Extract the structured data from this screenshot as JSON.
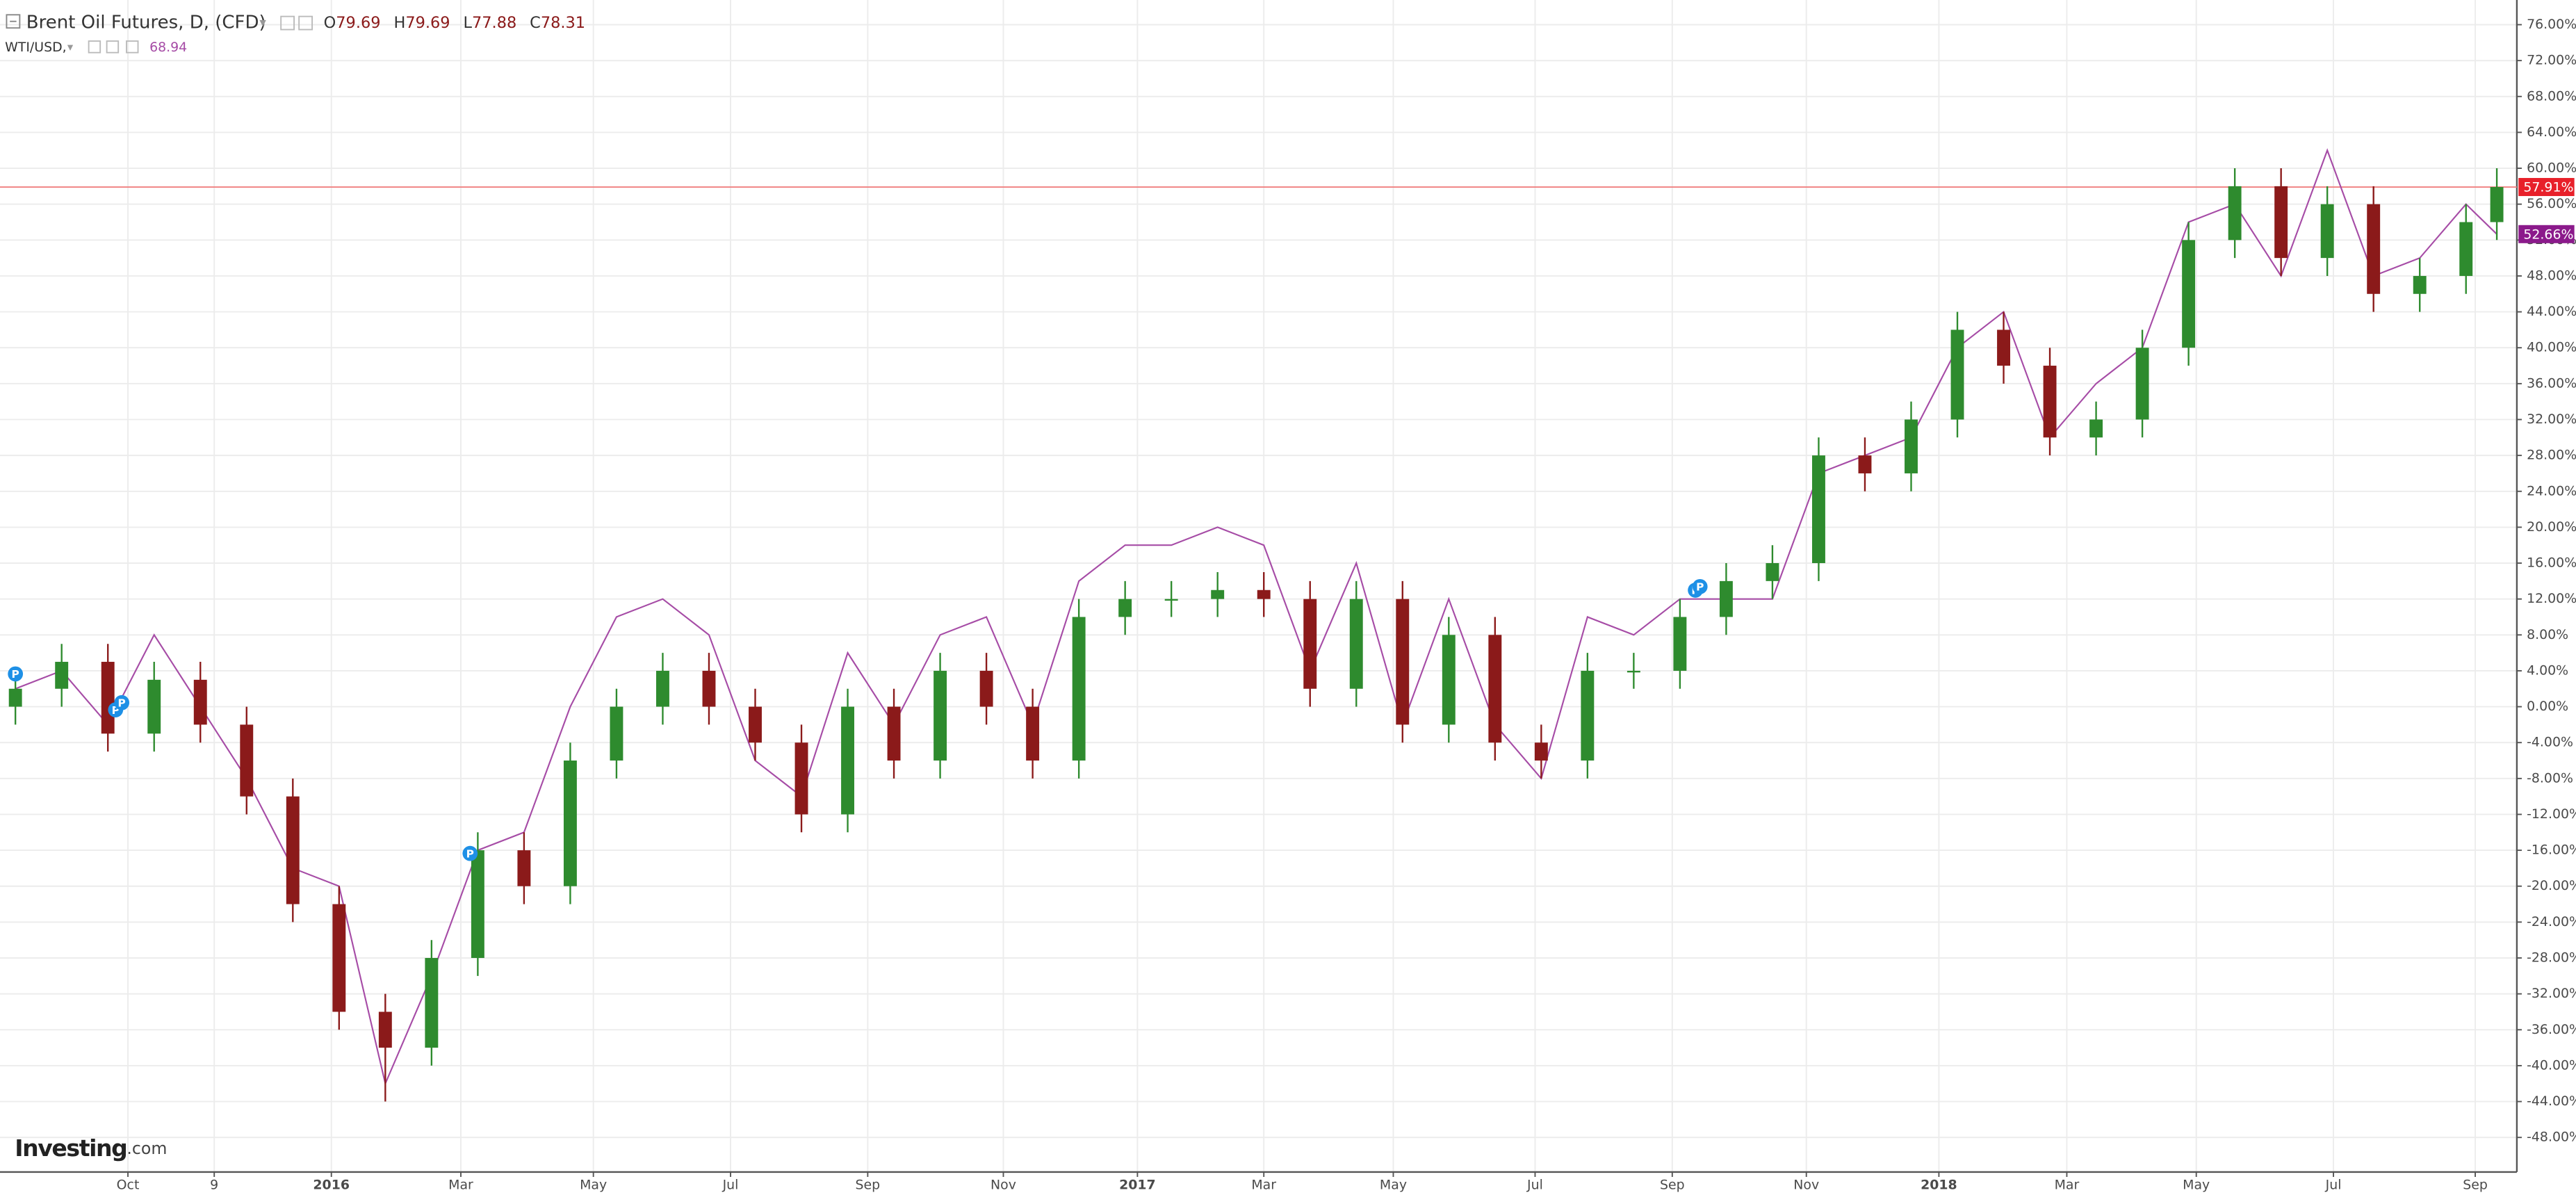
{
  "chart_data": {
    "type": "candlestick",
    "x": [
      1,
      4,
      7,
      10,
      13,
      16,
      19,
      22,
      25,
      28,
      31,
      34,
      37,
      40,
      43,
      46,
      49,
      52,
      55,
      58,
      61,
      64,
      67,
      70,
      73,
      76,
      79,
      82,
      85,
      88,
      91,
      94,
      97,
      100,
      103,
      106,
      109,
      112,
      115,
      118,
      121,
      124,
      127,
      130,
      133,
      136,
      139,
      142,
      145,
      148,
      151,
      154,
      157,
      160,
      162
    ],
    "xlim": [
      0,
      163.3
    ],
    "xticks": [
      {
        "value": 8.3,
        "label": "Oct"
      },
      {
        "value": 13.9,
        "label": "9"
      },
      {
        "value": 21.5,
        "label": "2016"
      },
      {
        "value": 29.9,
        "label": "Mar"
      },
      {
        "value": 38.5,
        "label": "May"
      },
      {
        "value": 47.4,
        "label": "Jul"
      },
      {
        "value": 56.3,
        "label": "Sep"
      },
      {
        "value": 65.1,
        "label": "Nov"
      },
      {
        "value": 73.8,
        "label": "2017"
      },
      {
        "value": 82.0,
        "label": "Mar"
      },
      {
        "value": 90.4,
        "label": "May"
      },
      {
        "value": 99.6,
        "label": "Jul"
      },
      {
        "value": 108.5,
        "label": "Sep"
      },
      {
        "value": 117.2,
        "label": "Nov"
      },
      {
        "value": 125.8,
        "label": "2018"
      },
      {
        "value": 134.1,
        "label": "Mar"
      },
      {
        "value": 142.5,
        "label": "May"
      },
      {
        "value": 151.4,
        "label": "Jul"
      },
      {
        "value": 160.6,
        "label": "Sep"
      }
    ],
    "ylim": [
      -51.85,
      78.75
    ],
    "yticks": [
      {
        "value": 76,
        "label": "76.00%"
      },
      {
        "value": 72,
        "label": "72.00%"
      },
      {
        "value": 68,
        "label": "68.00%"
      },
      {
        "value": 64,
        "label": "64.00%"
      },
      {
        "value": 60,
        "label": "60.00%"
      },
      {
        "value": 56,
        "label": "56.00%"
      },
      {
        "value": 52,
        "label": "52.00%"
      },
      {
        "value": 48,
        "label": "48.00%"
      },
      {
        "value": 44,
        "label": "44.00%"
      },
      {
        "value": 40,
        "label": "40.00%"
      },
      {
        "value": 36,
        "label": "36.00%"
      },
      {
        "value": 32,
        "label": "32.00%"
      },
      {
        "value": 28,
        "label": "28.00%"
      },
      {
        "value": 24,
        "label": "24.00%"
      },
      {
        "value": 20,
        "label": "20.00%"
      },
      {
        "value": 16,
        "label": "16.00%"
      },
      {
        "value": 12,
        "label": "12.00%"
      },
      {
        "value": 8,
        "label": "8.00%"
      },
      {
        "value": 4,
        "label": "4.00%"
      },
      {
        "value": 0,
        "label": "0.00%"
      },
      {
        "value": -4,
        "label": "-4.00%"
      },
      {
        "value": -8,
        "label": "-8.00%"
      },
      {
        "value": -12,
        "label": "-12.00%"
      },
      {
        "value": -16,
        "label": "-16.00%"
      },
      {
        "value": -20,
        "label": "-20.00%"
      },
      {
        "value": -24,
        "label": "-24.00%"
      },
      {
        "value": -28,
        "label": "-28.00%"
      },
      {
        "value": -32,
        "label": "-32.00%"
      },
      {
        "value": -36,
        "label": "-36.00%"
      },
      {
        "value": -40,
        "label": "-40.00%"
      },
      {
        "value": -44,
        "label": "-44.00%"
      },
      {
        "value": -48,
        "label": "-48.00%"
      }
    ],
    "grid": true,
    "series": [
      {
        "name": "Brent Oil Futures, D, (CFD)",
        "quote": [
          {
            "prefix": "O",
            "value": "79.69"
          },
          {
            "prefix": "H",
            "value": "79.69"
          },
          {
            "prefix": "L",
            "value": "77.88"
          },
          {
            "prefix": "C",
            "value": "78.31"
          }
        ],
        "up_color": "#2e8b2e",
        "down_color": "#8b1a1a",
        "line_color": "#f08080",
        "open": [
          0,
          2,
          5,
          -3,
          3,
          -2,
          -10,
          -22,
          -34,
          -38,
          -28,
          -16,
          -20,
          -6,
          0,
          4,
          0,
          -4,
          -12,
          0,
          -6,
          4,
          0,
          -6,
          10,
          12,
          12,
          13,
          12,
          2,
          12,
          -2,
          8,
          -4,
          -6,
          4,
          4,
          10,
          14,
          16,
          28,
          26,
          32,
          42,
          38,
          30,
          32,
          40,
          52,
          58,
          50,
          56,
          46,
          48,
          54
        ],
        "high": [
          4,
          7,
          7,
          5,
          5,
          0,
          -8,
          -20,
          -32,
          -26,
          -14,
          -14,
          -4,
          2,
          6,
          6,
          2,
          -2,
          2,
          2,
          6,
          6,
          2,
          12,
          14,
          14,
          15,
          15,
          14,
          14,
          14,
          10,
          10,
          -2,
          6,
          6,
          12,
          16,
          18,
          30,
          30,
          34,
          44,
          44,
          40,
          34,
          42,
          54,
          60,
          60,
          58,
          58,
          50,
          56,
          60
        ],
        "low": [
          -2,
          0,
          -5,
          -5,
          -4,
          -12,
          -24,
          -36,
          -44,
          -40,
          -30,
          -22,
          -22,
          -8,
          -2,
          -2,
          -6,
          -14,
          -14,
          -8,
          -8,
          -2,
          -8,
          -8,
          8,
          10,
          10,
          10,
          0,
          0,
          -4,
          -4,
          -6,
          -8,
          -8,
          2,
          2,
          8,
          12,
          14,
          24,
          24,
          30,
          36,
          28,
          28,
          30,
          38,
          50,
          48,
          48,
          44,
          44,
          46,
          52
        ],
        "close": [
          2,
          5,
          -3,
          3,
          -2,
          -10,
          -22,
          -34,
          -38,
          -28,
          -16,
          -20,
          -6,
          0,
          4,
          0,
          -4,
          -12,
          0,
          -6,
          4,
          0,
          -6,
          10,
          12,
          12,
          13,
          12,
          2,
          12,
          -2,
          8,
          -4,
          -6,
          4,
          4,
          10,
          14,
          16,
          28,
          26,
          32,
          42,
          38,
          30,
          32,
          40,
          52,
          58,
          50,
          56,
          46,
          48,
          54,
          57.91
        ],
        "value_label": "57.91%",
        "events": [
          {
            "x": 1,
            "label": "P"
          },
          {
            "x": 7.5,
            "label": "P"
          },
          {
            "x": 7.9,
            "label": "P"
          },
          {
            "x": 30.5,
            "label": "P"
          },
          {
            "x": 110,
            "label": "P"
          },
          {
            "x": 110.3,
            "label": "P"
          }
        ]
      },
      {
        "name": "WTI/USD,",
        "quote_value": "68.94",
        "color": "#a64ca6",
        "values": [
          2,
          4,
          -2,
          8,
          0,
          -8,
          -18,
          -20,
          -42,
          -30,
          -16,
          -14,
          0,
          10,
          12,
          8,
          -6,
          -10,
          6,
          -2,
          8,
          10,
          -2,
          14,
          18,
          18,
          20,
          18,
          4,
          16,
          -2,
          12,
          -2,
          -8,
          10,
          8,
          12,
          12,
          12,
          26,
          28,
          30,
          40,
          44,
          30,
          36,
          40,
          54,
          56,
          48,
          62,
          48,
          50,
          56,
          52.66
        ],
        "value_label": "52.66%"
      }
    ],
    "logo": "Investing",
    "logo_suffix": ".com"
  }
}
